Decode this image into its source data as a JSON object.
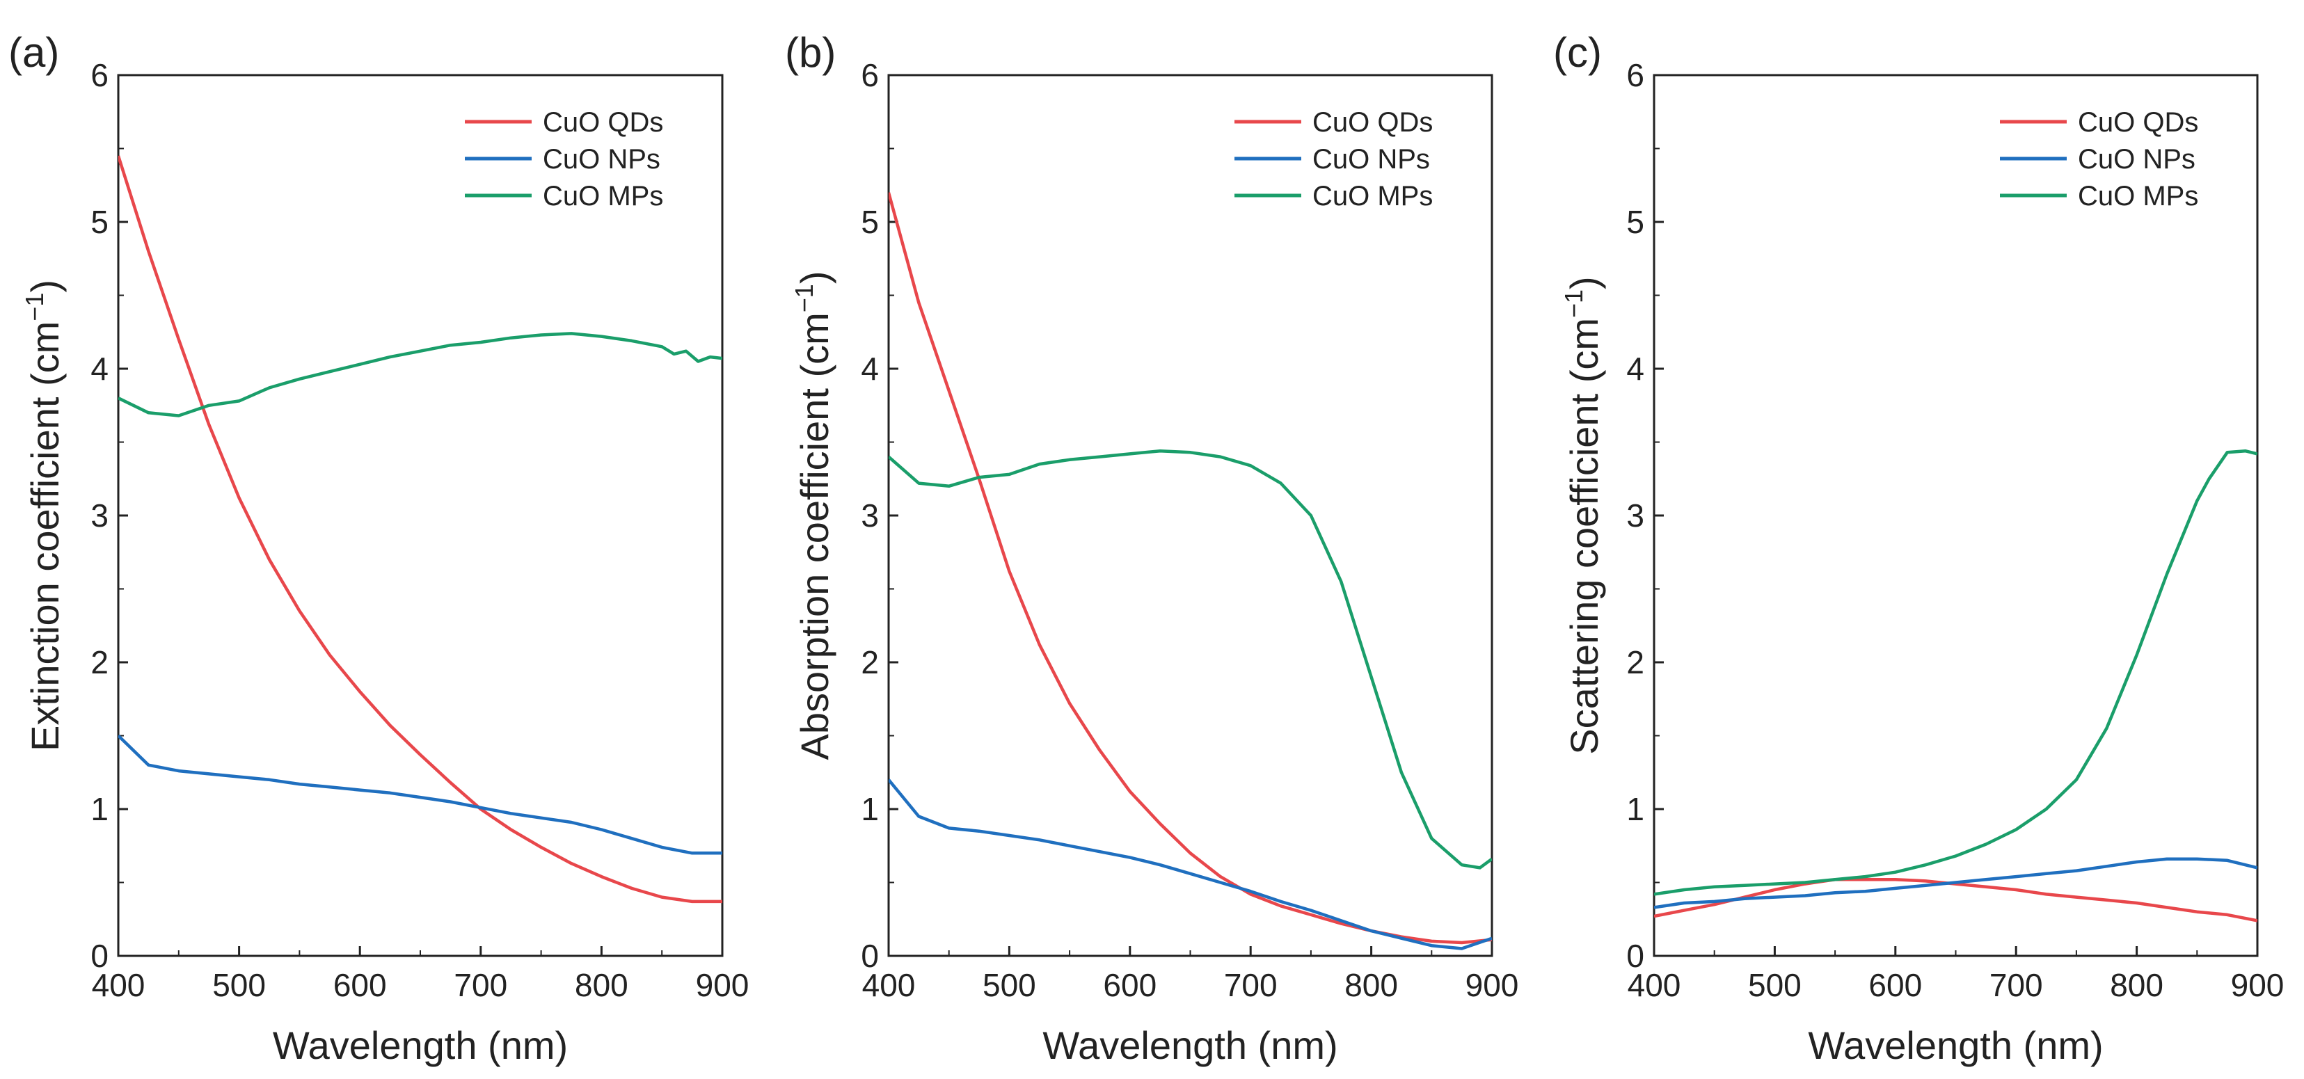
{
  "figure": {
    "series_colors": {
      "CuO QDs": "#e8474b",
      "CuO NPs": "#1f6fbf",
      "CuO MPs": "#1a9e6a"
    }
  },
  "chart_data": [
    {
      "type": "line",
      "panel_label": "(a)",
      "xlabel": "Wavelength (nm)",
      "ylabel_main": "Extinction coefficient (cm",
      "ylabel_sup": "−1",
      "ylabel_end": ")",
      "xlim": [
        400,
        900
      ],
      "ylim": [
        0,
        6
      ],
      "xticks": [
        "400",
        "500",
        "600",
        "700",
        "800",
        "900"
      ],
      "yticks": [
        "0",
        "1",
        "2",
        "3",
        "4",
        "5",
        "6"
      ],
      "grid": false,
      "legend_position": "top-right",
      "series": [
        {
          "name": "CuO QDs",
          "color": "#e8474b",
          "x": [
            400,
            425,
            450,
            475,
            500,
            525,
            550,
            575,
            600,
            625,
            650,
            675,
            700,
            725,
            750,
            775,
            800,
            825,
            850,
            875,
            900
          ],
          "y": [
            5.45,
            4.8,
            4.2,
            3.62,
            3.12,
            2.7,
            2.35,
            2.05,
            1.8,
            1.57,
            1.37,
            1.18,
            1.0,
            0.86,
            0.74,
            0.63,
            0.54,
            0.46,
            0.4,
            0.37,
            0.37
          ]
        },
        {
          "name": "CuO NPs",
          "color": "#1f6fbf",
          "x": [
            400,
            425,
            450,
            475,
            500,
            525,
            550,
            575,
            600,
            625,
            650,
            675,
            700,
            725,
            750,
            775,
            800,
            825,
            850,
            875,
            900
          ],
          "y": [
            1.5,
            1.3,
            1.26,
            1.24,
            1.22,
            1.2,
            1.17,
            1.15,
            1.13,
            1.11,
            1.08,
            1.05,
            1.01,
            0.97,
            0.94,
            0.91,
            0.86,
            0.8,
            0.74,
            0.7,
            0.7
          ]
        },
        {
          "name": "CuO MPs",
          "color": "#1a9e6a",
          "x": [
            400,
            425,
            450,
            475,
            500,
            525,
            550,
            575,
            600,
            625,
            650,
            675,
            700,
            725,
            750,
            775,
            800,
            825,
            850,
            860,
            870,
            880,
            890,
            900
          ],
          "y": [
            3.8,
            3.7,
            3.68,
            3.75,
            3.78,
            3.87,
            3.93,
            3.98,
            4.03,
            4.08,
            4.12,
            4.16,
            4.18,
            4.21,
            4.23,
            4.24,
            4.22,
            4.19,
            4.15,
            4.1,
            4.12,
            4.05,
            4.08,
            4.07
          ]
        }
      ]
    },
    {
      "type": "line",
      "panel_label": "(b)",
      "xlabel": "Wavelength (nm)",
      "ylabel_main": "Absorption coefficient (cm",
      "ylabel_sup": "−1",
      "ylabel_end": ")",
      "xlim": [
        400,
        900
      ],
      "ylim": [
        0,
        6
      ],
      "xticks": [
        "400",
        "500",
        "600",
        "700",
        "800",
        "900"
      ],
      "yticks": [
        "0",
        "1",
        "2",
        "3",
        "4",
        "5",
        "6"
      ],
      "grid": false,
      "legend_position": "top-right",
      "series": [
        {
          "name": "CuO QDs",
          "color": "#e8474b",
          "x": [
            400,
            425,
            450,
            475,
            500,
            525,
            550,
            575,
            600,
            625,
            650,
            675,
            700,
            725,
            750,
            775,
            800,
            825,
            850,
            875,
            900
          ],
          "y": [
            5.2,
            4.45,
            3.85,
            3.25,
            2.62,
            2.12,
            1.72,
            1.4,
            1.12,
            0.9,
            0.7,
            0.54,
            0.42,
            0.34,
            0.28,
            0.22,
            0.17,
            0.13,
            0.1,
            0.09,
            0.11
          ]
        },
        {
          "name": "CuO NPs",
          "color": "#1f6fbf",
          "x": [
            400,
            425,
            450,
            475,
            500,
            525,
            550,
            575,
            600,
            625,
            650,
            675,
            700,
            725,
            750,
            775,
            800,
            825,
            850,
            875,
            900
          ],
          "y": [
            1.2,
            0.95,
            0.87,
            0.85,
            0.82,
            0.79,
            0.75,
            0.71,
            0.67,
            0.62,
            0.56,
            0.5,
            0.44,
            0.37,
            0.31,
            0.24,
            0.17,
            0.12,
            0.07,
            0.05,
            0.12
          ]
        },
        {
          "name": "CuO MPs",
          "color": "#1a9e6a",
          "x": [
            400,
            425,
            450,
            475,
            500,
            525,
            550,
            575,
            600,
            625,
            650,
            675,
            700,
            725,
            750,
            775,
            800,
            825,
            850,
            875,
            890,
            900
          ],
          "y": [
            3.4,
            3.22,
            3.2,
            3.26,
            3.28,
            3.35,
            3.38,
            3.4,
            3.42,
            3.44,
            3.43,
            3.4,
            3.34,
            3.22,
            3.0,
            2.55,
            1.9,
            1.25,
            0.8,
            0.62,
            0.6,
            0.66
          ]
        }
      ]
    },
    {
      "type": "line",
      "panel_label": "(c)",
      "xlabel": "Wavelength (nm)",
      "ylabel_main": "Scattering coefficient (cm",
      "ylabel_sup": "−1",
      "ylabel_end": ")",
      "xlim": [
        400,
        900
      ],
      "ylim": [
        0,
        6
      ],
      "xticks": [
        "400",
        "500",
        "600",
        "700",
        "800",
        "900"
      ],
      "yticks": [
        "0",
        "1",
        "2",
        "3",
        "4",
        "5",
        "6"
      ],
      "grid": false,
      "legend_position": "top-right",
      "series": [
        {
          "name": "CuO QDs",
          "color": "#e8474b",
          "x": [
            400,
            425,
            450,
            475,
            500,
            525,
            550,
            575,
            600,
            625,
            650,
            675,
            700,
            725,
            750,
            775,
            800,
            825,
            850,
            875,
            900
          ],
          "y": [
            0.27,
            0.31,
            0.35,
            0.4,
            0.45,
            0.49,
            0.52,
            0.52,
            0.52,
            0.51,
            0.49,
            0.47,
            0.45,
            0.42,
            0.4,
            0.38,
            0.36,
            0.33,
            0.3,
            0.28,
            0.24
          ]
        },
        {
          "name": "CuO NPs",
          "color": "#1f6fbf",
          "x": [
            400,
            425,
            450,
            475,
            500,
            525,
            550,
            575,
            600,
            625,
            650,
            675,
            700,
            725,
            750,
            775,
            800,
            825,
            850,
            875,
            900
          ],
          "y": [
            0.33,
            0.36,
            0.37,
            0.39,
            0.4,
            0.41,
            0.43,
            0.44,
            0.46,
            0.48,
            0.5,
            0.52,
            0.54,
            0.56,
            0.58,
            0.61,
            0.64,
            0.66,
            0.66,
            0.65,
            0.6
          ]
        },
        {
          "name": "CuO MPs",
          "color": "#1a9e6a",
          "x": [
            400,
            425,
            450,
            475,
            500,
            525,
            550,
            575,
            600,
            625,
            650,
            675,
            700,
            725,
            750,
            775,
            800,
            825,
            850,
            860,
            875,
            890,
            900
          ],
          "y": [
            0.42,
            0.45,
            0.47,
            0.48,
            0.49,
            0.5,
            0.52,
            0.54,
            0.57,
            0.62,
            0.68,
            0.76,
            0.86,
            1.0,
            1.2,
            1.55,
            2.05,
            2.6,
            3.1,
            3.25,
            3.43,
            3.44,
            3.42
          ]
        }
      ]
    }
  ]
}
